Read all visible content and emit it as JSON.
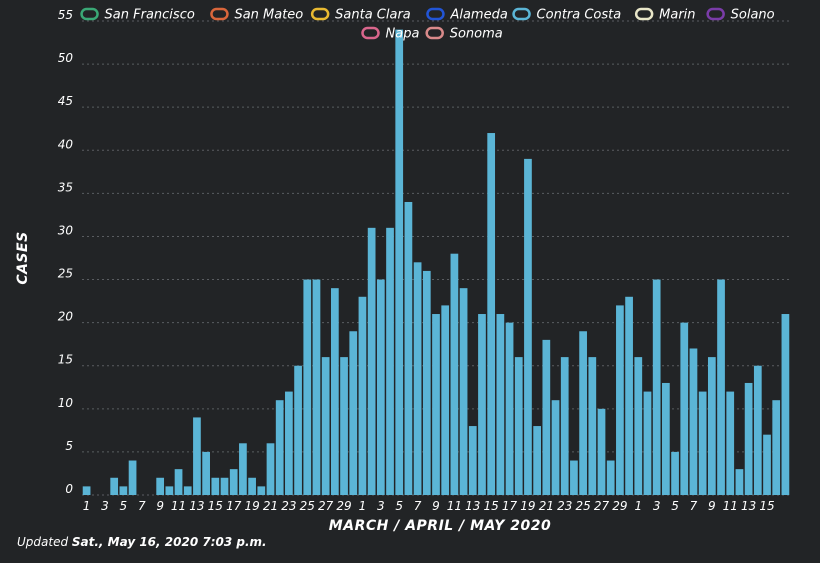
{
  "chart_data": {
    "type": "bar",
    "xlabel": "MARCH / APRIL / MAY 2020",
    "ylabel": "CASES",
    "ylim": [
      0,
      55
    ],
    "yticks": [
      0,
      5,
      10,
      15,
      20,
      25,
      30,
      35,
      40,
      45,
      50,
      55
    ],
    "grid": true,
    "legend_position": "top",
    "legend": [
      {
        "name": "San Francisco",
        "color": "#3aa876"
      },
      {
        "name": "San Mateo",
        "color": "#d9663b"
      },
      {
        "name": "Santa Clara",
        "color": "#e8b931"
      },
      {
        "name": "Alameda",
        "color": "#2255d6"
      },
      {
        "name": "Contra Costa",
        "color": "#5bb5d6"
      },
      {
        "name": "Marin",
        "color": "#e8e6c8"
      },
      {
        "name": "Solano",
        "color": "#7a3ca8"
      },
      {
        "name": "Napa",
        "color": "#d9668c"
      },
      {
        "name": "Sonoma",
        "color": "#d98a8a"
      }
    ],
    "series": [
      {
        "name": "Contra Costa",
        "color": "#5bb5d6",
        "values": [
          1,
          0,
          0,
          2,
          1,
          4,
          0,
          0,
          2,
          1,
          3,
          1,
          9,
          5,
          2,
          2,
          3,
          6,
          2,
          1,
          6,
          11,
          12,
          15,
          25,
          25,
          16,
          24,
          16,
          19,
          23,
          31,
          25,
          31,
          54,
          34,
          27,
          26,
          21,
          22,
          28,
          24,
          8,
          21,
          42,
          21,
          20,
          16,
          39,
          8,
          18,
          11,
          16,
          4,
          19,
          16,
          10,
          4,
          22,
          23,
          16,
          12,
          25,
          13,
          5,
          20,
          17,
          12,
          16,
          25,
          12,
          3,
          13,
          15,
          7,
          11,
          21
        ]
      }
    ],
    "x_tick_labels": [
      "1",
      "3",
      "5",
      "7",
      "9",
      "11",
      "13",
      "15",
      "17",
      "19",
      "21",
      "23",
      "25",
      "27",
      "29",
      "1",
      "3",
      "5",
      "7",
      "9",
      "11",
      "13",
      "15",
      "17",
      "19",
      "21",
      "23",
      "25",
      "27",
      "29",
      "1",
      "3",
      "5",
      "7",
      "9",
      "11",
      "13",
      "15"
    ],
    "x_tick_every": 2
  },
  "footer": {
    "prefix": "Updated ",
    "date": "Sat., May 16, 2020 7:03 p.m."
  }
}
